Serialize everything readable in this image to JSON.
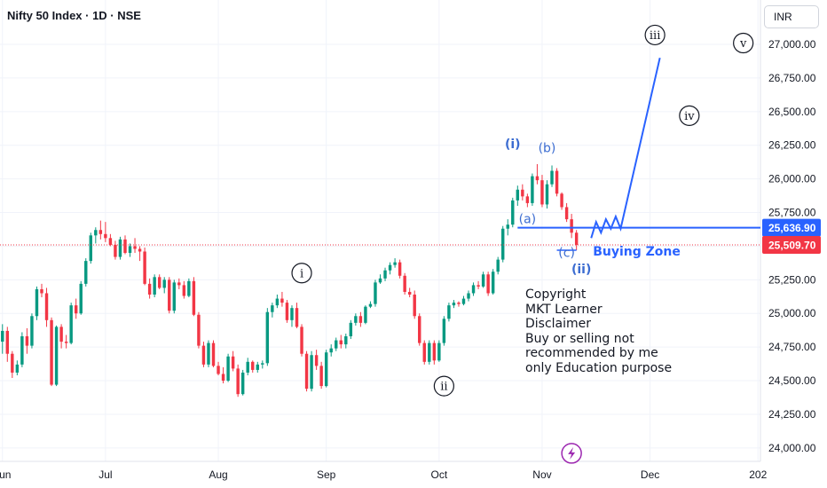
{
  "header": {
    "title": "Nifty 50 Index · 1D · NSE",
    "currency": "INR"
  },
  "chart_data": {
    "type": "candlestick",
    "y_ticks": [
      24000,
      24250,
      24500,
      24750,
      25000,
      25250,
      25500,
      25750,
      26000,
      26250,
      26500,
      26750,
      27000
    ],
    "y_tick_labels": [
      "24,000.00",
      "24,250.00",
      "24,500.00",
      "24,750.00",
      "25,000.00",
      "25,250.00",
      "25,500.00",
      "25,750.00",
      "26,000.00",
      "26,250.00",
      "26,500.00",
      "26,750.00",
      "27,000.00"
    ],
    "x_labels": [
      "Jun",
      "Jul",
      "Aug",
      "Sep",
      "Oct",
      "Nov",
      "Dec",
      "202"
    ],
    "x_label_index": [
      0,
      21,
      44,
      66,
      89,
      110,
      132,
      154
    ],
    "ylim": [
      23900,
      27330
    ],
    "xlim": [
      0,
      155
    ],
    "candles": [
      [
        24790,
        24920,
        24700,
        24870
      ],
      [
        24870,
        24900,
        24640,
        24700
      ],
      [
        24700,
        24720,
        24520,
        24560
      ],
      [
        24560,
        24650,
        24540,
        24620
      ],
      [
        24620,
        24860,
        24600,
        24830
      ],
      [
        24830,
        24890,
        24700,
        24760
      ],
      [
        24760,
        25000,
        24740,
        24980
      ],
      [
        24980,
        25200,
        24950,
        25180
      ],
      [
        25180,
        25220,
        25120,
        25150
      ],
      [
        25150,
        25190,
        24900,
        24950
      ],
      [
        24950,
        24970,
        24460,
        24470
      ],
      [
        24470,
        24910,
        24460,
        24900
      ],
      [
        24900,
        24920,
        24740,
        24790
      ],
      [
        24790,
        24840,
        24740,
        24780
      ],
      [
        24780,
        25080,
        24770,
        25060
      ],
      [
        25060,
        25110,
        24960,
        25000
      ],
      [
        25000,
        25240,
        24990,
        25220
      ],
      [
        25220,
        25410,
        25200,
        25390
      ],
      [
        25390,
        25600,
        25370,
        25580
      ],
      [
        25580,
        25640,
        25520,
        25620
      ],
      [
        25620,
        25690,
        25550,
        25590
      ],
      [
        25590,
        25680,
        25530,
        25560
      ],
      [
        25560,
        25590,
        25500,
        25510
      ],
      [
        25510,
        25540,
        25400,
        25420
      ],
      [
        25420,
        25570,
        25400,
        25550
      ],
      [
        25550,
        25580,
        25440,
        25450
      ],
      [
        25450,
        25520,
        25420,
        25500
      ],
      [
        25500,
        25560,
        25450,
        25480
      ],
      [
        25480,
        25500,
        25390,
        25460
      ],
      [
        25460,
        25490,
        25210,
        25220
      ],
      [
        25220,
        25260,
        25110,
        25140
      ],
      [
        25140,
        25290,
        25120,
        25270
      ],
      [
        25270,
        25290,
        25180,
        25190
      ],
      [
        25190,
        25270,
        25150,
        25250
      ],
      [
        25250,
        25270,
        25000,
        25020
      ],
      [
        25020,
        25250,
        25000,
        25230
      ],
      [
        25230,
        25260,
        25180,
        25210
      ],
      [
        25210,
        25240,
        25110,
        25130
      ],
      [
        25130,
        25260,
        25120,
        25240
      ],
      [
        25240,
        25270,
        24980,
        24990
      ],
      [
        24990,
        25010,
        24740,
        24760
      ],
      [
        24760,
        24790,
        24600,
        24620
      ],
      [
        24620,
        24800,
        24600,
        24780
      ],
      [
        24780,
        24800,
        24600,
        24610
      ],
      [
        24610,
        24640,
        24540,
        24550
      ],
      [
        24550,
        24600,
        24480,
        24500
      ],
      [
        24500,
        24700,
        24490,
        24680
      ],
      [
        24680,
        24720,
        24570,
        24590
      ],
      [
        24590,
        24620,
        24380,
        24400
      ],
      [
        24400,
        24580,
        24390,
        24560
      ],
      [
        24560,
        24670,
        24540,
        24640
      ],
      [
        24640,
        24650,
        24560,
        24580
      ],
      [
        24580,
        24640,
        24560,
        24620
      ],
      [
        24620,
        24650,
        24590,
        24630
      ],
      [
        24630,
        25040,
        24610,
        25010
      ],
      [
        25010,
        25080,
        24970,
        25060
      ],
      [
        25060,
        25140,
        25040,
        25110
      ],
      [
        25110,
        25160,
        25050,
        25080
      ],
      [
        25080,
        25100,
        24930,
        24950
      ],
      [
        24950,
        25060,
        24900,
        25040
      ],
      [
        25040,
        25080,
        24890,
        24900
      ],
      [
        24900,
        24920,
        24680,
        24700
      ],
      [
        24700,
        24720,
        24420,
        24440
      ],
      [
        24440,
        24720,
        24420,
        24690
      ],
      [
        24690,
        24730,
        24580,
        24610
      ],
      [
        24610,
        24640,
        24440,
        24460
      ],
      [
        24460,
        24730,
        24450,
        24710
      ],
      [
        24710,
        24770,
        24680,
        24740
      ],
      [
        24740,
        24820,
        24720,
        24800
      ],
      [
        24800,
        24840,
        24740,
        24770
      ],
      [
        24770,
        24850,
        24740,
        24830
      ],
      [
        24830,
        24950,
        24810,
        24930
      ],
      [
        24930,
        25000,
        24910,
        24980
      ],
      [
        24980,
        25010,
        24900,
        24930
      ],
      [
        24930,
        25060,
        24920,
        25050
      ],
      [
        25050,
        25090,
        25040,
        25070
      ],
      [
        25070,
        25250,
        25050,
        25230
      ],
      [
        25230,
        25290,
        25220,
        25260
      ],
      [
        25260,
        25340,
        25240,
        25320
      ],
      [
        25320,
        25380,
        25290,
        25360
      ],
      [
        25360,
        25410,
        25340,
        25380
      ],
      [
        25380,
        25400,
        25260,
        25280
      ],
      [
        25280,
        25300,
        25140,
        25160
      ],
      [
        25160,
        25190,
        25120,
        25140
      ],
      [
        25140,
        25170,
        24960,
        24980
      ],
      [
        24980,
        25000,
        24760,
        24780
      ],
      [
        24780,
        24800,
        24620,
        24640
      ],
      [
        24640,
        24800,
        24620,
        24780
      ],
      [
        24780,
        24800,
        24620,
        24650
      ],
      [
        24650,
        24800,
        24640,
        24780
      ],
      [
        24780,
        24980,
        24760,
        24960
      ],
      [
        24960,
        25080,
        24940,
        25060
      ],
      [
        25060,
        25100,
        25040,
        25080
      ],
      [
        25080,
        25090,
        25050,
        25070
      ],
      [
        25070,
        25130,
        25060,
        25110
      ],
      [
        25110,
        25170,
        25090,
        25150
      ],
      [
        25150,
        25230,
        25130,
        25210
      ],
      [
        25210,
        25240,
        25180,
        25200
      ],
      [
        25200,
        25310,
        25190,
        25290
      ],
      [
        25290,
        25310,
        25130,
        25150
      ],
      [
        25150,
        25330,
        25140,
        25310
      ],
      [
        25310,
        25420,
        25290,
        25400
      ],
      [
        25400,
        25650,
        25380,
        25630
      ],
      [
        25630,
        25700,
        25580,
        25660
      ],
      [
        25660,
        25860,
        25640,
        25840
      ],
      [
        25840,
        25950,
        25800,
        25920
      ],
      [
        25920,
        25960,
        25840,
        25870
      ],
      [
        25870,
        25890,
        25790,
        25820
      ],
      [
        25820,
        26040,
        25800,
        26020
      ],
      [
        26020,
        26110,
        25960,
        25990
      ],
      [
        25990,
        26030,
        25790,
        25810
      ],
      [
        25810,
        25990,
        25780,
        25960
      ],
      [
        25960,
        26100,
        25940,
        26060
      ],
      [
        26060,
        26080,
        25870,
        25890
      ],
      [
        25890,
        25900,
        25770,
        25790
      ],
      [
        25790,
        25820,
        25680,
        25700
      ],
      [
        25700,
        25740,
        25560,
        25600
      ],
      [
        25600,
        25620,
        25470,
        25509.7
      ]
    ],
    "colors": {
      "up": "#089981",
      "down": "#f23645"
    },
    "current_price": 25509.7,
    "current_price_label": "25,509.70",
    "level_price": 25636.9,
    "level_price_label": "25,636.90",
    "level_color": "#2962ff",
    "wave_labels_blue": [
      {
        "text": "(i)",
        "candle": 104,
        "price": 26230
      },
      {
        "text": "(b)",
        "candle": 111,
        "price": 26200
      },
      {
        "text": "(a)",
        "candle": 107,
        "price": 25670
      },
      {
        "text": "(c)",
        "candle": 115,
        "price": 25420
      },
      {
        "text": "(ii)",
        "candle": 118,
        "price": 25300
      }
    ],
    "wave_labels_circled": [
      {
        "text": "i",
        "candle": 61,
        "price": 25300
      },
      {
        "text": "ii",
        "candle": 90,
        "price": 24460
      },
      {
        "text": "iii",
        "candle": 133,
        "price": 27070
      },
      {
        "text": "iv",
        "candle": 140,
        "price": 26470
      },
      {
        "text": "v",
        "candle": 151,
        "price": 27010
      }
    ],
    "buying_zone_label": "Buying Zone",
    "projection_path": [
      {
        "candle": 120,
        "price": 25560
      },
      {
        "candle": 121,
        "price": 25680
      },
      {
        "candle": 122,
        "price": 25600
      },
      {
        "candle": 123,
        "price": 25700
      },
      {
        "candle": 124,
        "price": 25630
      },
      {
        "candle": 125,
        "price": 25720
      },
      {
        "candle": 126,
        "price": 25630
      },
      {
        "candle": 134,
        "price": 26900
      }
    ],
    "bolt_icon": {
      "candle": 116,
      "price": 23960
    }
  },
  "note": {
    "lines": [
      "Copyright",
      "MKT Learner",
      "Disclaimer",
      "Buy or selling not",
      "recommended by me",
      "only Education purpose"
    ]
  }
}
